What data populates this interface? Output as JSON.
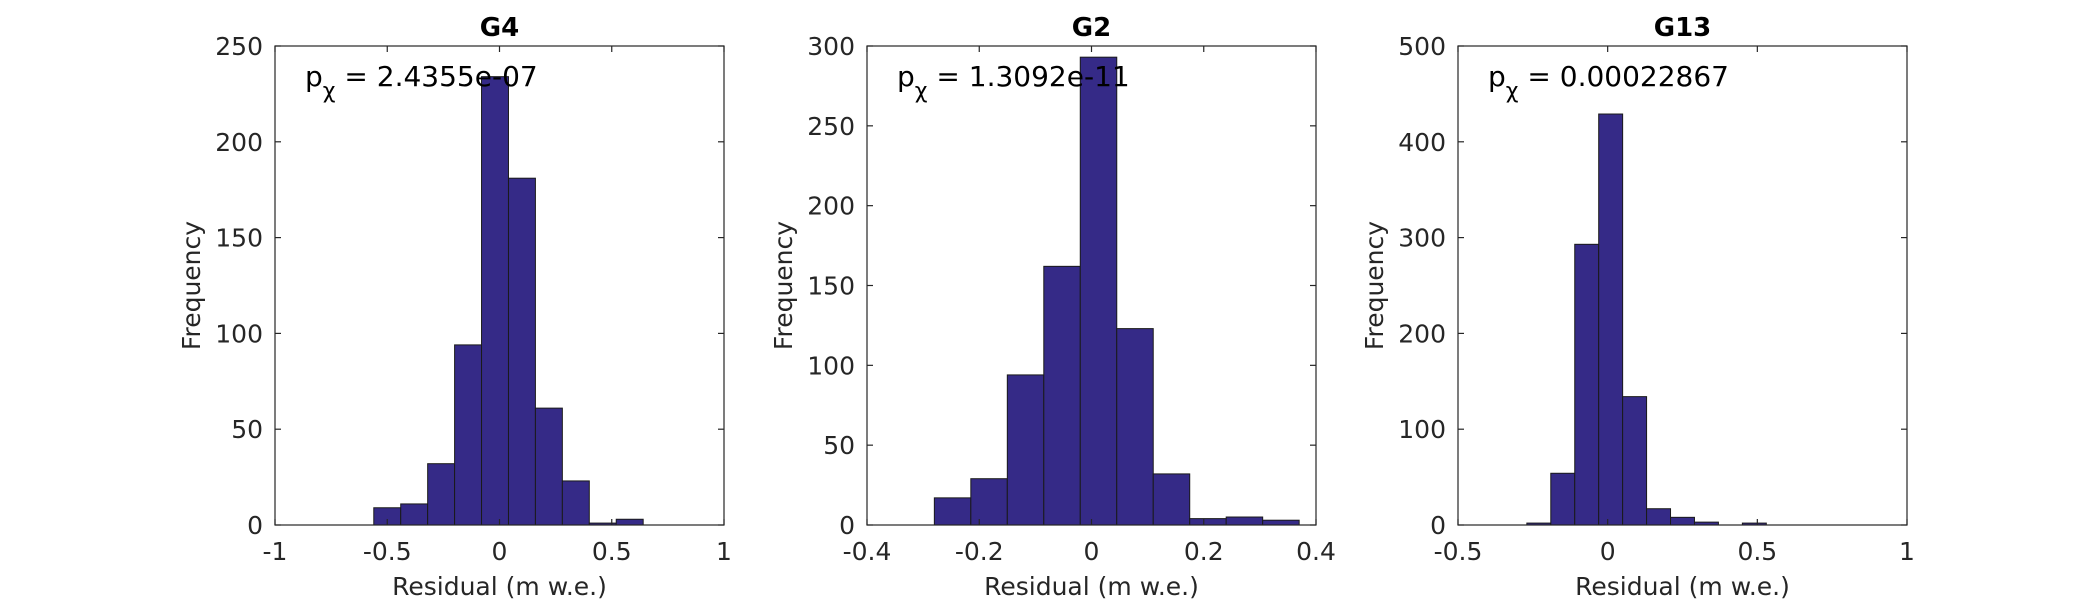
{
  "figure": {
    "background": "#ffffff",
    "bar_color": "#352a87",
    "bar_edge": "#1a1a1a"
  },
  "chart_data": [
    {
      "type": "bar",
      "title": "G4",
      "xlabel": "Residual (m w.e.)",
      "ylabel": "Frequency",
      "xlim": [
        -1,
        1
      ],
      "ylim": [
        0,
        250
      ],
      "xticks": [
        "-1",
        "-0.5",
        "0",
        "0.5",
        "1"
      ],
      "yticks": [
        "0",
        "50",
        "100",
        "150",
        "200",
        "250"
      ],
      "annotation": {
        "prefix": "p",
        "subscript": "χ",
        "text": " = 2.4355e-07"
      },
      "bin_edges": [
        -0.56,
        -0.44,
        -0.32,
        -0.2,
        -0.08,
        0.04,
        0.16,
        0.28,
        0.4,
        0.52,
        0.64
      ],
      "values": [
        9,
        11,
        32,
        94,
        234,
        181,
        61,
        23,
        1,
        3
      ]
    },
    {
      "type": "bar",
      "title": "G2",
      "xlabel": "Residual (m w.e.)",
      "ylabel": "Frequency",
      "xlim": [
        -0.4,
        0.4
      ],
      "ylim": [
        0,
        300
      ],
      "xticks": [
        "-0.4",
        "-0.2",
        "0",
        "0.2",
        "0.4"
      ],
      "yticks": [
        "0",
        "50",
        "100",
        "150",
        "200",
        "250",
        "300"
      ],
      "annotation": {
        "prefix": "p",
        "subscript": "χ",
        "text": " = 1.3092e-11"
      },
      "bin_edges": [
        -0.28,
        -0.215,
        -0.15,
        -0.085,
        -0.02,
        0.045,
        0.11,
        0.175,
        0.24,
        0.305,
        0.37
      ],
      "values": [
        17,
        29,
        94,
        162,
        293,
        123,
        32,
        4,
        5,
        3
      ]
    },
    {
      "type": "bar",
      "title": "G13",
      "xlabel": "Residual (m w.e.)",
      "ylabel": "Frequency",
      "xlim": [
        -0.5,
        1
      ],
      "ylim": [
        0,
        500
      ],
      "xticks": [
        "-0.5",
        "0",
        "0.5",
        "1"
      ],
      "yticks": [
        "0",
        "100",
        "200",
        "300",
        "400",
        "500"
      ],
      "annotation": {
        "prefix": "p",
        "subscript": "χ",
        "text": " = 0.00022867"
      },
      "bin_edges": [
        -0.27,
        -0.19,
        -0.11,
        -0.03,
        0.05,
        0.13,
        0.21,
        0.29,
        0.37,
        0.45,
        0.53
      ],
      "values": [
        2,
        54,
        293,
        429,
        134,
        17,
        8,
        3,
        0,
        2
      ]
    }
  ]
}
